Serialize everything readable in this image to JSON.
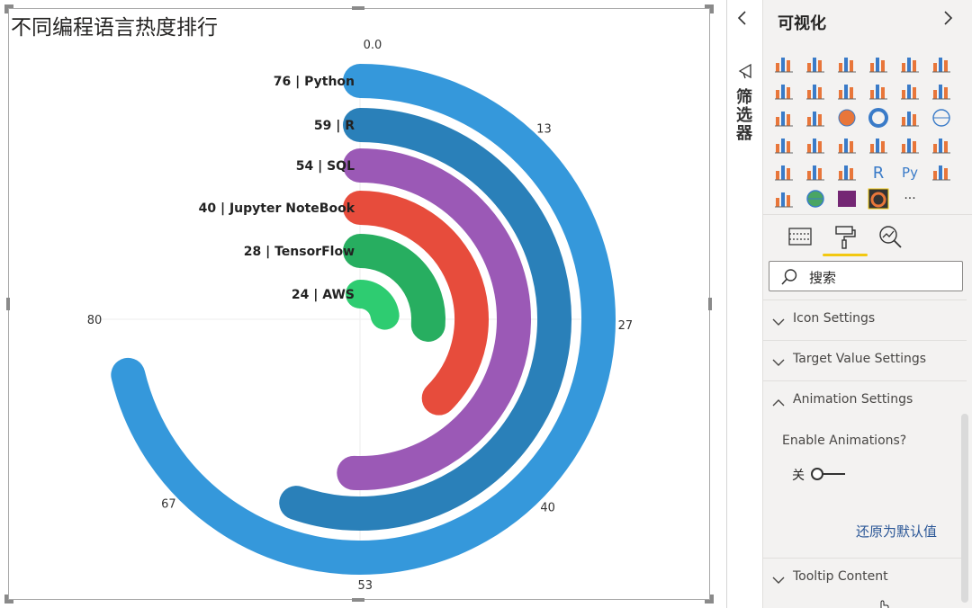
{
  "visual": {
    "title": "不同编程语言热度排行"
  },
  "chart_data": {
    "type": "radial-bar",
    "max": 80,
    "sweep_degrees": 270,
    "ticks": [
      {
        "value": 0,
        "label": "0.0"
      },
      {
        "value": 13,
        "label": "13"
      },
      {
        "value": 27,
        "label": "27"
      },
      {
        "value": 40,
        "label": "40"
      },
      {
        "value": 53,
        "label": "53"
      },
      {
        "value": 67,
        "label": "67"
      },
      {
        "value": 80,
        "label": "80"
      }
    ],
    "series": [
      {
        "label": "76 | Python",
        "value": 76,
        "color": "#3598db"
      },
      {
        "label": "59 | R",
        "value": 59,
        "color": "#2a80b9"
      },
      {
        "label": "54 | SQL",
        "value": 54,
        "color": "#9b59b6"
      },
      {
        "label": "40 | Jupyter NoteBook",
        "value": 40,
        "color": "#e74c3c"
      },
      {
        "label": "28 | TensorFlow",
        "value": 28,
        "color": "#27ae60"
      },
      {
        "label": "24 | AWS",
        "value": 24,
        "color": "#2ecc71"
      }
    ]
  },
  "filters": {
    "label": "筛选器",
    "collapse_icon": "chevron-left-icon",
    "filter_icon": "filter-icon"
  },
  "pane": {
    "title": "可视化",
    "next_icon": "chevron-right-icon",
    "search_placeholder": "搜索",
    "sections": {
      "icon": "Icon Settings",
      "target": "Target Value Settings",
      "animation": "Animation Settings",
      "tooltip": "Tooltip Content"
    },
    "enable_animations_label": "Enable Animations?",
    "toggle_state_label": "关",
    "reset_label": "还原为默认值",
    "tabs": [
      "fields-tab",
      "format-tab",
      "analytics-tab"
    ],
    "more_label": "···",
    "r_label": "R",
    "py_label": "Py",
    "colors": {
      "accent": "#f2c811",
      "link": "#2b5797",
      "orange": "#e8763a",
      "blue": "#3a7bc8"
    }
  }
}
